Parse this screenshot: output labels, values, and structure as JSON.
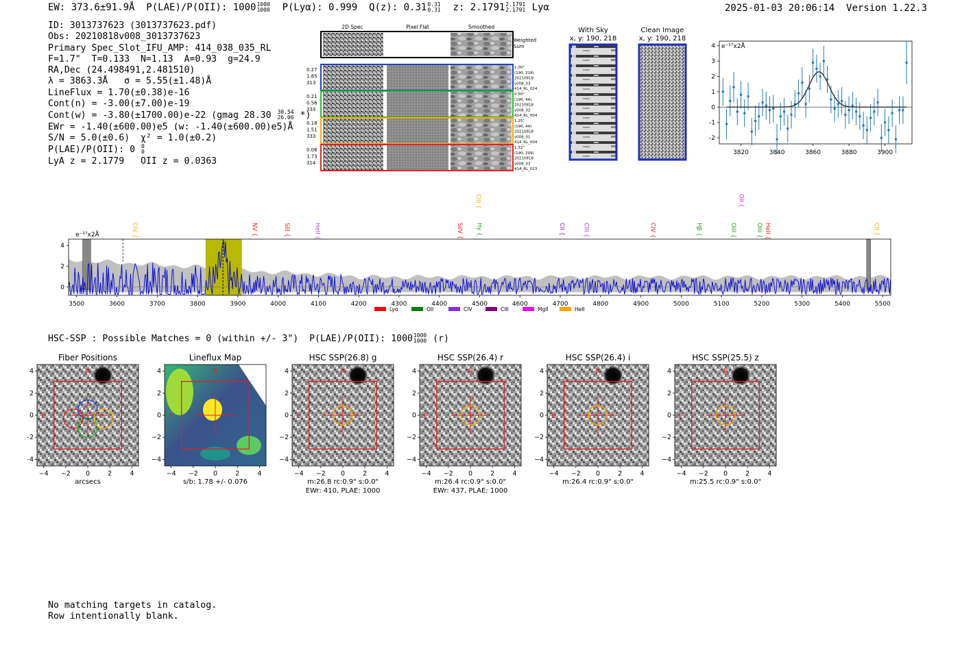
{
  "header": {
    "ew": "EW: 373.6±91.9Å",
    "plae_label": "P(LAE)/P(OII): 1000",
    "plae_sup": "1000",
    "plae_sub": "1000",
    "plya": "P(Lyα): 0.999",
    "qz_label": "Q(z): 0.31",
    "qz_sup": "0.31",
    "qz_sub": "0.31",
    "z_label": "z: 2.1791",
    "z_sup": "2.1791",
    "z_sub": "2.1791",
    "z_line": "Lyα",
    "timestamp": "2025-01-03 20:06:14",
    "version": "Version 1.22.3"
  },
  "info": {
    "id": "ID: 3013737623 (3013737623.pdf)",
    "obs": "Obs: 20210818v008_3013737623",
    "primary": "Primary Spec_Slot_IFU_AMP: 414_038_035_RL",
    "fwhm": "F=1.7\"  T=0.133  N=1.13  A=0.93  g=24.9",
    "radec": "RA,Dec (24.498491,2.481510)",
    "lambda": "λ = 3863.3Å   σ = 5.55(±1.48)Å",
    "lineflux": "LineFlux = 1.70(±0.38)e-16",
    "contn": "Cont(n) = -3.00(±7.00)e-19",
    "contw": "Cont(w) = -3.80(±1700.00)e-22 (gmag 28.30",
    "contw_sup": "30.54",
    "contw_sub": "26.06",
    "contw_end": "*)",
    "ewr": "EWr = -1.40(±600.00)e5 (w: -1.40(±600.00)e5)Å",
    "sn": "S/N = 5.0(±0.6)  χ² = 1.0(±0.2)",
    "plae": "P(LAE)/P(OII): 0",
    "plae_sup": "0",
    "plae_sub": "0",
    "lyaz": "LyA z = 2.1779   OII z = 0.0363"
  },
  "cutouts": {
    "headers": [
      "2D Spec",
      "Pixel Flat",
      "Smoothed"
    ],
    "weighted_sum": [
      "Weighted",
      "Sum"
    ],
    "rows": [
      {
        "left": [
          "0.27",
          "1.85",
          "313"
        ],
        "right": [
          "1.00\"",
          "(190, 218)",
          "20210818",
          "v008_03",
          "414_RL_024"
        ],
        "color": "#1f3fc8"
      },
      {
        "left": [
          "0.21",
          "0.56",
          "333"
        ],
        "right": [
          "0.50\"",
          "(190, 44)",
          "20210818",
          "v008_02",
          "414_RL_004"
        ],
        "color": "#22c022"
      },
      {
        "left": [
          "0.18",
          "1.51",
          "333"
        ],
        "right": [
          "1.25\"",
          "(190, 44)",
          "20210818",
          "v008_01",
          "414_RL_004"
        ],
        "color": "#ffa500"
      },
      {
        "left": [
          "0.08",
          "1.73",
          "314"
        ],
        "right": [
          "1.32\"",
          "(190, 209)",
          "20210818",
          "v008_03",
          "414_RL_023"
        ],
        "color": "#e02020"
      }
    ],
    "with_sky_title": "With Sky",
    "with_sky_coord": "x, y: 190, 218",
    "clean_title": "Clean Image",
    "clean_coord": "x, y: 190, 218"
  },
  "fit_chart": {
    "type": "scatter",
    "unit_label": "e⁻¹⁷x2Å",
    "xlim": [
      3808,
      3915
    ],
    "ylim": [
      -2.4,
      4.3
    ],
    "xticks": [
      3820,
      3840,
      3860,
      3880,
      3900
    ],
    "yticks": [
      -2,
      -1,
      0,
      1,
      2,
      3,
      4
    ],
    "points": [
      [
        3810,
        1.0,
        0.9
      ],
      [
        3812,
        -1.1,
        1.0
      ],
      [
        3814,
        0.4,
        1.0
      ],
      [
        3816,
        1.3,
        1.0
      ],
      [
        3818,
        -0.3,
        0.9
      ],
      [
        3820,
        0.8,
        0.9
      ],
      [
        3822,
        -0.4,
        0.9
      ],
      [
        3824,
        0.7,
        0.9
      ],
      [
        3826,
        -1.6,
        0.9
      ],
      [
        3828,
        -0.9,
        1.0
      ],
      [
        3830,
        -0.6,
        0.9
      ],
      [
        3832,
        0.3,
        0.9
      ],
      [
        3834,
        0.1,
        0.9
      ],
      [
        3836,
        -0.2,
        0.9
      ],
      [
        3838,
        -0.1,
        0.9
      ],
      [
        3840,
        -2.1,
        1.0
      ],
      [
        3842,
        -0.6,
        0.9
      ],
      [
        3844,
        -0.3,
        0.9
      ],
      [
        3846,
        -1.4,
        0.9
      ],
      [
        3848,
        -0.5,
        0.9
      ],
      [
        3850,
        0.2,
        0.9
      ],
      [
        3852,
        0.9,
        0.9
      ],
      [
        3854,
        1.6,
        1.0
      ],
      [
        3856,
        0.2,
        0.9
      ],
      [
        3858,
        1.2,
        0.9
      ],
      [
        3860,
        2.9,
        0.9
      ],
      [
        3862,
        2.5,
        0.9
      ],
      [
        3864,
        2.0,
        0.9
      ],
      [
        3866,
        3.0,
        1.0
      ],
      [
        3868,
        1.8,
        0.9
      ],
      [
        3870,
        0.5,
        0.9
      ],
      [
        3872,
        -0.1,
        0.9
      ],
      [
        3874,
        0.2,
        0.9
      ],
      [
        3876,
        0.4,
        0.9
      ],
      [
        3878,
        -0.5,
        0.9
      ],
      [
        3880,
        -0.2,
        0.9
      ],
      [
        3882,
        0.1,
        0.9
      ],
      [
        3884,
        -0.3,
        0.9
      ],
      [
        3886,
        -0.6,
        0.9
      ],
      [
        3888,
        -1.2,
        0.9
      ],
      [
        3890,
        -1.5,
        0.9
      ],
      [
        3892,
        -0.7,
        0.9
      ],
      [
        3894,
        -0.3,
        0.9
      ],
      [
        3896,
        0.3,
        0.9
      ],
      [
        3898,
        -2.0,
        0.9
      ],
      [
        3900,
        -1.0,
        0.9
      ],
      [
        3902,
        -1.5,
        0.9
      ],
      [
        3904,
        -0.4,
        0.9
      ],
      [
        3906,
        -2.1,
        0.9
      ],
      [
        3908,
        -0.2,
        0.9
      ],
      [
        3910,
        -0.2,
        0.9
      ],
      [
        3912,
        2.9,
        1.4
      ]
    ],
    "gauss": {
      "amp": 2.3,
      "mu": 3863.3,
      "sigma": 5.55
    }
  },
  "spectrum": {
    "type": "line",
    "unit_label": "e⁻¹⁷x2Å",
    "xlim": [
      3480,
      5520
    ],
    "ylim": [
      -0.8,
      4.6
    ],
    "xticks": [
      3500,
      3600,
      3700,
      3800,
      3900,
      4000,
      4100,
      4200,
      4300,
      4400,
      4500,
      4600,
      4700,
      4800,
      4900,
      5000,
      5100,
      5200,
      5300,
      5400,
      5500
    ],
    "yticks": [
      0,
      2,
      4
    ],
    "highlight": [
      3820,
      3910
    ],
    "line_marker": 3863,
    "dashed_marker": 3615,
    "hatch_regions": [
      [
        3515,
        3535
      ],
      [
        5460,
        5470
      ]
    ],
    "lines": [
      {
        "label": "CIV",
        "wave": 3640,
        "color": "#ffa500",
        "row": 1
      },
      {
        "label": "NV",
        "wave": 3937,
        "color": "#e02020",
        "row": 1
      },
      {
        "label": "SiII",
        "wave": 4018,
        "color": "#e02020",
        "row": 1
      },
      {
        "label": "HeII",
        "wave": 4093,
        "color": "#a040e0",
        "row": 1
      },
      {
        "label": "SiIV",
        "wave": 4446,
        "color": "#e02020",
        "row": 1
      },
      {
        "label": "Hγ",
        "wave": 4495,
        "color": "#22a022",
        "row": 1
      },
      {
        "label": "CIII",
        "wave": 4492,
        "color": "#ffa500",
        "row": 0
      },
      {
        "label": "CII",
        "wave": 4700,
        "color": "#8020c0",
        "row": 1
      },
      {
        "label": "CIII",
        "wave": 4760,
        "color": "#a040e0",
        "row": 1
      },
      {
        "label": "CIV",
        "wave": 4925,
        "color": "#e02020",
        "row": 1
      },
      {
        "label": "Hβ",
        "wave": 5040,
        "color": "#22a022",
        "row": 1
      },
      {
        "label": "OII",
        "wave": 5145,
        "color": "#e020e0",
        "row": 0
      },
      {
        "label": "OIII",
        "wave": 5125,
        "color": "#22a022",
        "row": 1
      },
      {
        "label": "OIII",
        "wave": 5190,
        "color": "#22a022",
        "row": 1
      },
      {
        "label": "HeII",
        "wave": 5210,
        "color": "#e02020",
        "row": 1
      },
      {
        "label": "CII",
        "wave": 5480,
        "color": "#ffa500",
        "row": 1
      }
    ],
    "legend": [
      {
        "label": "Lyα",
        "color": "#ff0000"
      },
      {
        "label": "OII",
        "color": "#008000"
      },
      {
        "label": "CIV",
        "color": "#8a2be2"
      },
      {
        "label": "CIII",
        "color": "#800080"
      },
      {
        "label": "MgII",
        "color": "#ff00ff"
      },
      {
        "label": "HeII",
        "color": "#ffa500"
      }
    ]
  },
  "hsc": {
    "line": "HSC-SSP : Possible Matches = 0 (within +/- 3\")  P(LAE)/P(OII): 1000",
    "sup": "1000",
    "sub": "1000",
    "end": "(r)",
    "panels": [
      {
        "title": "Fiber Positions",
        "caption1": "arcsecs",
        "caption2": "",
        "kind": "fiber"
      },
      {
        "title": "Lineflux Map",
        "caption1": "s/b: 1.78 +/- 0.076",
        "caption2": "",
        "kind": "flux"
      },
      {
        "title": "HSC SSP(26.8) g",
        "caption1": "m:26.8 rc:0.9\"  s:0.0\"",
        "caption2": "EWr: 410, PLAE: 1000",
        "kind": "hsc"
      },
      {
        "title": "HSC SSP(26.4) r",
        "caption1": "m:26.4 rc:0.9\"  s:0.0\"",
        "caption2": "EWr: 437, PLAE: 1000",
        "kind": "hsc"
      },
      {
        "title": "HSC SSP(26.4) i",
        "caption1": "m:26.4 rc:0.9\"  s:0.0\"",
        "caption2": "",
        "kind": "hsc"
      },
      {
        "title": "HSC SSP(25.5) z",
        "caption1": "m:25.5 rc:0.9\"  s:0.0\"",
        "caption2": "",
        "kind": "hsc"
      }
    ],
    "ticks": [
      "−4",
      "−2",
      "0",
      "2",
      "4"
    ],
    "north": "N",
    "east": "E"
  },
  "footer": {
    "line1": "No matching targets in catalog.",
    "line2": "Row intentionally blank."
  }
}
